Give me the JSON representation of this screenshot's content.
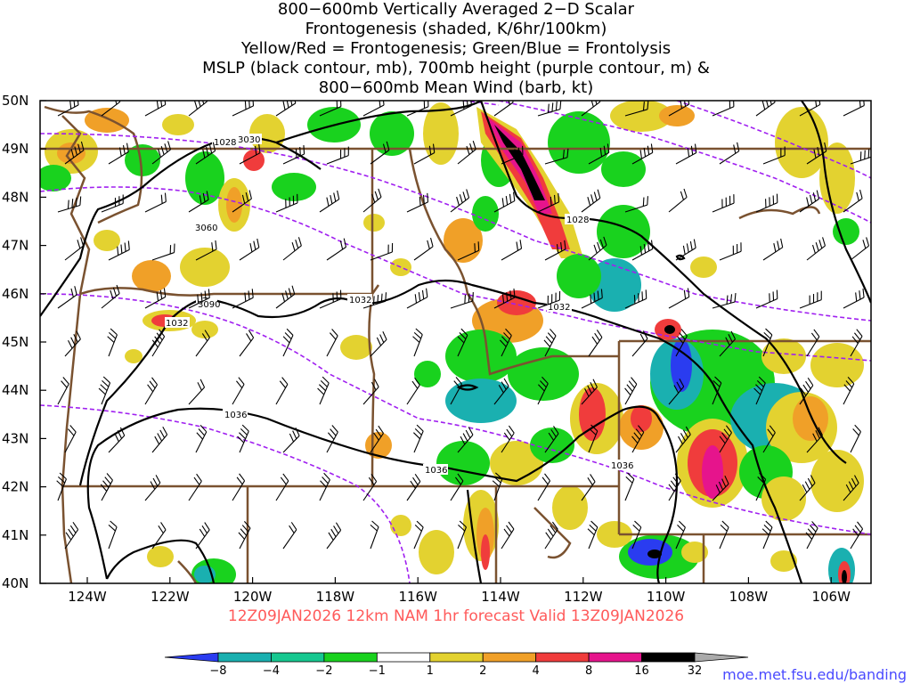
{
  "title_lines": [
    "800−600mb Vertically Averaged 2−D Scalar",
    "Frontogenesis (shaded, K/6hr/100km)",
    "Yellow/Red = Frontogenesis;  Green/Blue = Frontolysis",
    "MSLP (black contour, mb), 700mb height (purple contour, m) &",
    "800−600mb Mean Wind (barb, kt)"
  ],
  "footer": "12Z09JAN2026  12km  NAM  1hr forecast Valid  13Z09JAN2026",
  "credit": "moe.met.fsu.edu/banding",
  "map": {
    "lat_ticks": [
      "50N",
      "49N",
      "48N",
      "47N",
      "46N",
      "45N",
      "44N",
      "43N",
      "42N",
      "41N",
      "40N"
    ],
    "lon_ticks": [
      "124W",
      "122W",
      "120W",
      "118W",
      "116W",
      "114W",
      "112W",
      "110W",
      "108W",
      "106W"
    ],
    "mslp_labels": [
      "1028",
      "1028",
      "1032",
      "1032",
      "1032",
      "1036",
      "1036",
      "1036"
    ],
    "height_labels": [
      "3030",
      "3060",
      "3090"
    ],
    "colors": {
      "state_border": "#7a5230",
      "mslp": "#000000",
      "height": "#a020f0"
    }
  },
  "colorbar": {
    "labels": [
      "−8",
      "−4",
      "−2",
      "−1",
      "1",
      "2",
      "4",
      "8",
      "16",
      "32"
    ],
    "colors": [
      "#2a3cf0",
      "#1ab0b0",
      "#16c890",
      "#19d21e",
      "#ffffff",
      "#e3d230",
      "#f0a028",
      "#f03c3c",
      "#e6148c",
      "#000000",
      "#aaaaaa"
    ]
  }
}
